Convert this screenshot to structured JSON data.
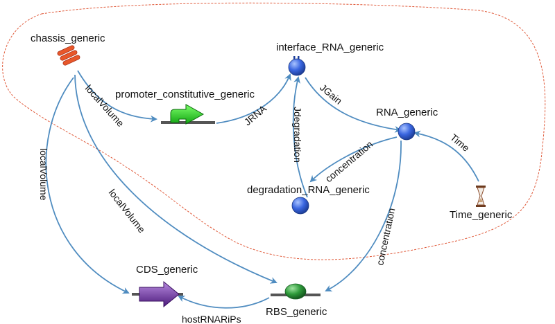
{
  "nodes": {
    "chassis": {
      "label": "chassis_generic",
      "icon": "bacteria-icon",
      "color": "#e8572a"
    },
    "promoter": {
      "label": "promoter_constitutive_generic",
      "icon": "promoter-arrow-icon",
      "color": "#22cc22"
    },
    "interface_rna": {
      "label": "interface_RNA_generic",
      "icon": "species-circle-icon",
      "color": "#3a66e0"
    },
    "rna": {
      "label": "RNA_generic",
      "icon": "species-circle-icon",
      "color": "#3a66e0"
    },
    "degradation_rna": {
      "label": "degradation_RNA_generic",
      "icon": "species-circle-icon",
      "color": "#3a66e0"
    },
    "time": {
      "label": "Time_generic",
      "icon": "hourglass-icon",
      "color": "#8b4a2a"
    },
    "cds": {
      "label": "CDS_generic",
      "icon": "cds-arrow-icon",
      "color": "#6a2a9a"
    },
    "rbs": {
      "label": "RBS_generic",
      "icon": "rbs-ellipse-icon",
      "color": "#2e9a3a"
    }
  },
  "edges": {
    "local_volume_promoter": "localVolume",
    "local_volume_cds": "localVolume",
    "local_volume_rbs": "localVolume",
    "jrna": "JRNA",
    "jgain": "JGain",
    "jdegradation": "Jdegradation",
    "concentration_degradation": "concentration",
    "concentration_rbs": "concentration",
    "time": "Time",
    "host_rna_ripps": "hostRNARiPs"
  },
  "colors": {
    "edge": "#4f8cc0",
    "boundary": "#e05a3a",
    "backbone": "#555555"
  }
}
